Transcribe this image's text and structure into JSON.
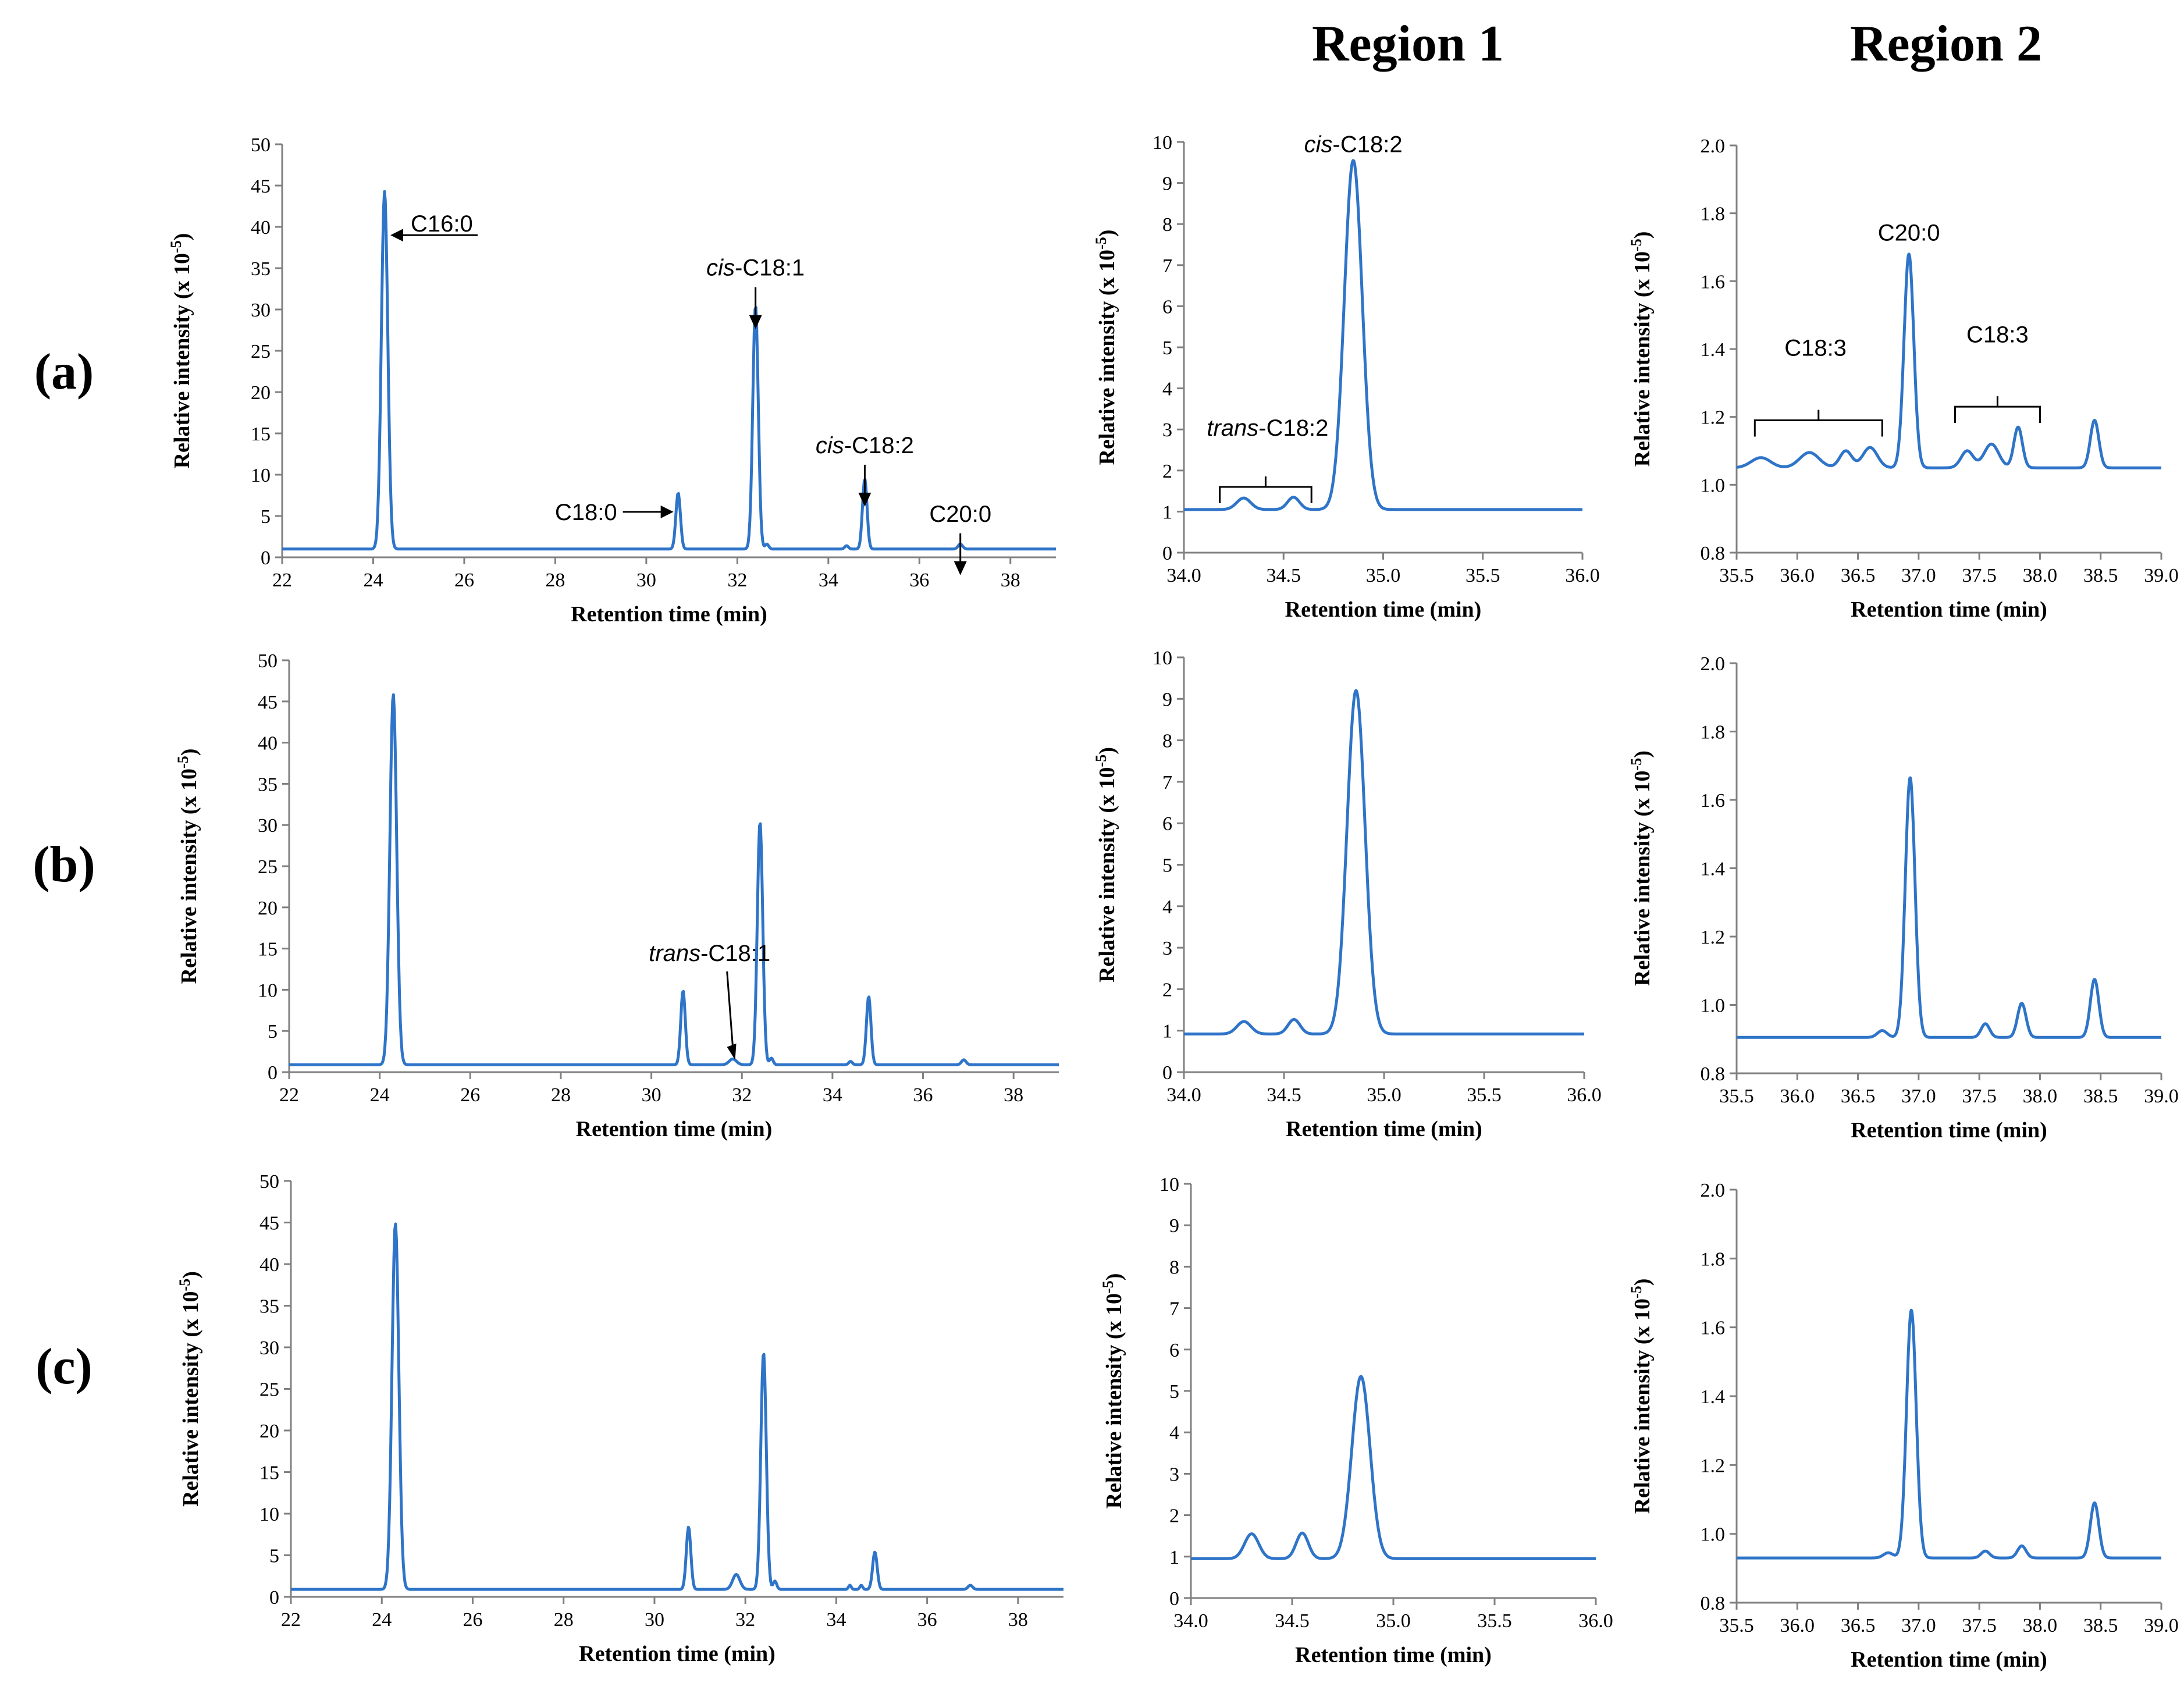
{
  "column_titles": [
    "Region 1",
    "Region 2"
  ],
  "row_labels": [
    "(a)",
    "(b)",
    "(c)"
  ],
  "colors": {
    "series": "#2e74c8",
    "axis": "#808080",
    "text": "#000000"
  },
  "chart_data": [
    {
      "id": "a-full",
      "type": "line",
      "xlabel": "Retention time (min)",
      "ylabel": "Relative intensity (x 10-5)",
      "xlim": [
        22,
        39
      ],
      "ylim": [
        0,
        50
      ],
      "xticks": [
        "22",
        "24",
        "26",
        "28",
        "30",
        "32",
        "34",
        "36",
        "38"
      ],
      "yticks": [
        "0",
        "5",
        "10",
        "15",
        "20",
        "25",
        "30",
        "35",
        "40",
        "45",
        "50"
      ],
      "baseline": 1,
      "peaks": [
        [
          24.25,
          43.3,
          0.07
        ],
        [
          30.7,
          6.8,
          0.05
        ],
        [
          32.4,
          29.5,
          0.06
        ],
        [
          34.8,
          8.5,
          0.05
        ],
        [
          36.9,
          0.6,
          0.05
        ],
        [
          34.4,
          0.4,
          0.04
        ],
        [
          32.65,
          0.6,
          0.04
        ]
      ],
      "annotations": [
        {
          "text": "C16:0",
          "x": 24.25,
          "y": 39,
          "dir": "left"
        },
        {
          "text": "C18:0",
          "x": 30.7,
          "y": 5.5,
          "dir": "right"
        },
        {
          "text_prefix": "cis",
          "text": "-C18:1",
          "x": 32.4,
          "y": 32,
          "dir": "down"
        },
        {
          "text_prefix": "cis",
          "text": "-C18:2",
          "x": 34.8,
          "y": 10.5,
          "dir": "down"
        },
        {
          "text": "C20:0",
          "x": 36.9,
          "y": 2.2,
          "dir": "down"
        }
      ]
    },
    {
      "id": "a-r1",
      "type": "line",
      "xlabel": "Retention time (min)",
      "ylabel": "Relative intensity (x 10-5)",
      "xlim": [
        34.0,
        36.0
      ],
      "ylim": [
        0,
        10
      ],
      "xticks": [
        "34.0",
        "34.5",
        "35.0",
        "35.5",
        "36.0"
      ],
      "yticks": [
        "0",
        "1",
        "2",
        "3",
        "4",
        "5",
        "6",
        "7",
        "8",
        "9",
        "10"
      ],
      "baseline": 1.05,
      "peaks": [
        [
          34.3,
          0.28,
          0.035
        ],
        [
          34.55,
          0.3,
          0.03
        ],
        [
          34.85,
          8.5,
          0.045
        ]
      ],
      "annotations": [
        {
          "text_prefix": "cis",
          "text": "-C18:2",
          "x": 34.85,
          "y": 9.75,
          "dir": "none"
        },
        {
          "text_prefix": "trans",
          "text": "-C18:2",
          "x": 34.42,
          "y": 2.85,
          "dir": "bracket",
          "x0": 34.18,
          "x1": 34.64,
          "by": 1.6
        }
      ]
    },
    {
      "id": "a-r2",
      "type": "line",
      "xlabel": "Retention time (min)",
      "ylabel": "Relative intensity (x 10-5)",
      "xlim": [
        35.5,
        39.0
      ],
      "ylim": [
        0.8,
        2.0
      ],
      "xticks": [
        "35.5",
        "36.0",
        "36.5",
        "37.0",
        "37.5",
        "38.0",
        "38.5",
        "39.0"
      ],
      "yticks": [
        "0.8",
        "1.0",
        "1.2",
        "1.4",
        "1.6",
        "1.8",
        "2.0"
      ],
      "baseline": 1.05,
      "peaks": [
        [
          35.7,
          0.03,
          0.08
        ],
        [
          36.1,
          0.045,
          0.08
        ],
        [
          36.4,
          0.05,
          0.05
        ],
        [
          36.6,
          0.06,
          0.06
        ],
        [
          36.92,
          0.63,
          0.04
        ],
        [
          37.4,
          0.05,
          0.05
        ],
        [
          37.6,
          0.07,
          0.06
        ],
        [
          37.82,
          0.12,
          0.035
        ],
        [
          38.45,
          0.14,
          0.035
        ]
      ],
      "annotations": [
        {
          "text": "C20:0",
          "x": 36.92,
          "y": 1.72,
          "dir": "none"
        },
        {
          "text": "C18:3",
          "x": 36.15,
          "y": 1.38,
          "dir": "bracket",
          "x0": 35.65,
          "x1": 36.7,
          "by": 1.19
        },
        {
          "text": "C18:3",
          "x": 37.65,
          "y": 1.42,
          "dir": "bracket",
          "x0": 37.3,
          "x1": 38.0,
          "by": 1.23
        }
      ]
    },
    {
      "id": "b-full",
      "type": "line",
      "xlabel": "Retention time (min)",
      "ylabel": "Relative intensity (x 10-5)",
      "xlim": [
        22,
        39
      ],
      "ylim": [
        0,
        50
      ],
      "xticks": [
        "22",
        "24",
        "26",
        "28",
        "30",
        "32",
        "34",
        "36",
        "38"
      ],
      "yticks": [
        "0",
        "5",
        "10",
        "15",
        "20",
        "25",
        "30",
        "35",
        "40",
        "45",
        "50"
      ],
      "baseline": 0.9,
      "peaks": [
        [
          24.3,
          45.0,
          0.075
        ],
        [
          30.7,
          9.0,
          0.05
        ],
        [
          31.8,
          0.7,
          0.08
        ],
        [
          32.4,
          29.5,
          0.06
        ],
        [
          34.8,
          8.3,
          0.05
        ],
        [
          36.9,
          0.6,
          0.05
        ],
        [
          32.65,
          0.8,
          0.04
        ],
        [
          34.4,
          0.4,
          0.04
        ]
      ],
      "annotations": [
        {
          "text_prefix": "trans",
          "text": "-C18:1",
          "x": 31.8,
          "y": 13.5,
          "dir": "diag",
          "ax": 31.85,
          "ay": 1.5
        }
      ]
    },
    {
      "id": "b-r1",
      "type": "line",
      "xlabel": "Retention time (min)",
      "ylabel": "Relative intensity (x 10-5)",
      "xlim": [
        34.0,
        36.0
      ],
      "ylim": [
        0,
        10
      ],
      "xticks": [
        "34.0",
        "34.5",
        "35.0",
        "35.5",
        "36.0"
      ],
      "yticks": [
        "0",
        "1",
        "2",
        "3",
        "4",
        "5",
        "6",
        "7",
        "8",
        "9",
        "10"
      ],
      "baseline": 0.92,
      "peaks": [
        [
          34.3,
          0.3,
          0.035
        ],
        [
          34.55,
          0.35,
          0.03
        ],
        [
          34.86,
          8.28,
          0.045
        ]
      ],
      "annotations": []
    },
    {
      "id": "b-r2",
      "type": "line",
      "xlabel": "Retention time (min)",
      "ylabel": "Relative intensity (x 10-5)",
      "xlim": [
        35.5,
        39.0
      ],
      "ylim": [
        0.8,
        2.0
      ],
      "xticks": [
        "35.5",
        "36.0",
        "36.5",
        "37.0",
        "37.5",
        "38.0",
        "38.5",
        "39.0"
      ],
      "yticks": [
        "0.8",
        "1.0",
        "1.2",
        "1.4",
        "1.6",
        "1.8",
        "2.0"
      ],
      "baseline": 0.905,
      "peaks": [
        [
          36.7,
          0.02,
          0.04
        ],
        [
          36.93,
          0.76,
          0.04
        ],
        [
          37.55,
          0.04,
          0.035
        ],
        [
          37.85,
          0.1,
          0.035
        ],
        [
          38.45,
          0.17,
          0.035
        ]
      ],
      "annotations": []
    },
    {
      "id": "c-full",
      "type": "line",
      "xlabel": "Retention time (min)",
      "ylabel": "Relative intensity (x 10-5)",
      "xlim": [
        22,
        39
      ],
      "ylim": [
        0,
        50
      ],
      "xticks": [
        "22",
        "24",
        "26",
        "28",
        "30",
        "32",
        "34",
        "36",
        "38"
      ],
      "yticks": [
        "0",
        "5",
        "10",
        "15",
        "20",
        "25",
        "30",
        "35",
        "40",
        "45",
        "50"
      ],
      "baseline": 0.9,
      "peaks": [
        [
          24.3,
          44.0,
          0.075
        ],
        [
          30.75,
          7.5,
          0.05
        ],
        [
          31.8,
          1.8,
          0.08
        ],
        [
          32.4,
          28.5,
          0.06
        ],
        [
          32.65,
          1.0,
          0.04
        ],
        [
          34.3,
          0.5,
          0.03
        ],
        [
          34.55,
          0.5,
          0.03
        ],
        [
          34.85,
          4.5,
          0.05
        ],
        [
          36.95,
          0.5,
          0.05
        ]
      ],
      "annotations": []
    },
    {
      "id": "c-r1",
      "type": "line",
      "xlabel": "Retention time (min)",
      "ylabel": "Relative intensity (x 10-5)",
      "xlim": [
        34.0,
        36.0
      ],
      "ylim": [
        0,
        10
      ],
      "xticks": [
        "34.0",
        "34.5",
        "35.0",
        "35.5",
        "36.0"
      ],
      "yticks": [
        "0",
        "1",
        "2",
        "3",
        "4",
        "5",
        "6",
        "7",
        "8",
        "9",
        "10"
      ],
      "baseline": 0.95,
      "peaks": [
        [
          34.3,
          0.6,
          0.035
        ],
        [
          34.55,
          0.62,
          0.03
        ],
        [
          34.84,
          4.4,
          0.045
        ]
      ],
      "annotations": []
    },
    {
      "id": "c-r2",
      "type": "line",
      "xlabel": "Retention time (min)",
      "ylabel": "Relative intensity (x 10-5)",
      "xlim": [
        35.5,
        39.0
      ],
      "ylim": [
        0.8,
        2.0
      ],
      "xticks": [
        "35.5",
        "36.0",
        "36.5",
        "37.0",
        "37.5",
        "38.0",
        "38.5",
        "39.0"
      ],
      "yticks": [
        "0.8",
        "1.0",
        "1.2",
        "1.4",
        "1.6",
        "1.8",
        "2.0"
      ],
      "baseline": 0.93,
      "peaks": [
        [
          36.75,
          0.015,
          0.04
        ],
        [
          36.94,
          0.72,
          0.04
        ],
        [
          37.55,
          0.02,
          0.035
        ],
        [
          37.85,
          0.035,
          0.035
        ],
        [
          38.45,
          0.16,
          0.035
        ]
      ],
      "annotations": []
    }
  ]
}
